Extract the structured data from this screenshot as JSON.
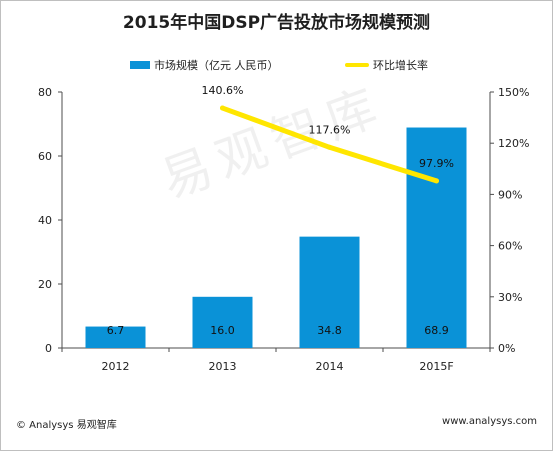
{
  "title": "2015年中国DSP广告投放市场规模预测",
  "watermark": "易观智库",
  "footer": {
    "left": "© Analysys 易观智库",
    "right": "www.analysys.com"
  },
  "colors": {
    "bar": "#0a92d7",
    "line": "#ffe600",
    "axis": "#4d4d4d"
  },
  "chart_data": {
    "type": "bar",
    "title": "2015年中国DSP广告投放市场规模预测",
    "categories": [
      "2012",
      "2013",
      "2014",
      "2015F"
    ],
    "series": [
      {
        "name": "市场规模（亿元 人民币）",
        "type": "bar",
        "axis": "left",
        "values": [
          6.7,
          16.0,
          34.8,
          68.9
        ]
      },
      {
        "name": "环比增长率",
        "type": "line",
        "axis": "right",
        "values": [
          null,
          140.6,
          117.6,
          97.9
        ]
      }
    ],
    "value_labels": {
      "bar": [
        "6.7",
        "16.0",
        "34.8",
        "68.9"
      ],
      "line": [
        "",
        "140.6%",
        "117.6%",
        "97.9%"
      ]
    },
    "y_left": {
      "range": [
        0,
        80
      ],
      "ticks": [
        0,
        20,
        40,
        60,
        80
      ]
    },
    "y_right": {
      "range": [
        0,
        150
      ],
      "ticks": [
        "0%",
        "30%",
        "60%",
        "90%",
        "120%",
        "150%"
      ]
    },
    "grid": false,
    "legend": "top"
  }
}
